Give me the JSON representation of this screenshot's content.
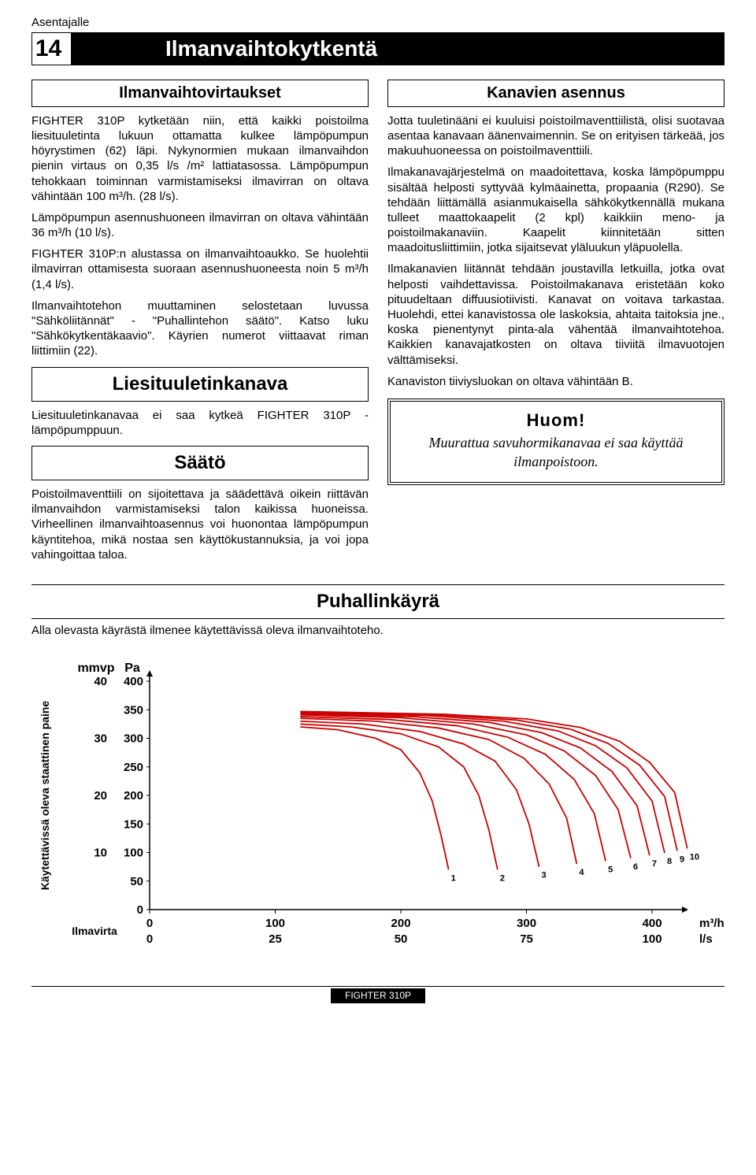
{
  "top_label": "Asentajalle",
  "page_num": "14",
  "page_title": "Ilmanvaihtokytkentä",
  "left": {
    "h1": "Ilmanvaihtovirtaukset",
    "p1": "FIGHTER 310P kytketään niin, että kaikki poistoilma liesituuletinta lukuun ottamatta kulkee lämpöpumpun höyrystimen (62) läpi. Nykynormien mukaan ilmanvaihdon pienin virtaus on 0,35 l/s /m² lattiatasossa. Lämpöpumpun tehokkaan toiminnan varmistamiseksi ilmavirran on oltava vähintään 100 m³/h. (28 l/s).",
    "p2": "Lämpöpumpun asennushuoneen ilmavirran on oltava vähintään 36 m³/h (10 l/s).",
    "p3": "FIGHTER 310P:n alustassa on ilmanvaihtoaukko. Se huolehtii ilmavirran ottamisesta suoraan asennushuoneesta noin 5 m³/h (1,4 l/s).",
    "p4": "Ilmanvaihtotehon muuttaminen selostetaan luvussa \"Sähköliitännät\" - \"Puhallintehon säätö\". Katso luku \"Sähkökytkentäkaavio\". Käyrien numerot viittaavat riman liittimiin (22).",
    "h2": "Liesituuletinkanava",
    "p5": "Liesituuletinkanavaa ei saa kytkeä FIGHTER 310P -lämpöpumppuun.",
    "h3": "Säätö",
    "p6": "Poistoilmaventtiili on sijoitettava ja säädettävä oikein riittävän ilmanvaihdon varmistamiseksi talon kaikissa huoneissa. Virheellinen ilmanvaihtoasennus voi huonontaa lämpöpumpun käyntitehoa, mikä nostaa sen käyttökustannuksia, ja voi jopa vahingoittaa taloa."
  },
  "right": {
    "h1": "Kanavien asennus",
    "p1": "Jotta tuuletinääni ei kuuluisi poistoilmaventtiilistä, olisi suotavaa asentaa kanavaan äänenvaimennin. Se on erityisen tärkeää, jos makuuhuoneessa on poistoilmaventtiili.",
    "p2": "Ilmakanavajärjestelmä on maadoitettava, koska lämpöpumppu sisältää helposti syttyvää kylmäainetta, propaania (R290). Se tehdään liittämällä asianmukaisella sähkökytkennällä mukana tulleet maattokaapelit (2 kpl) kaikkiin meno- ja poistoilmakanaviin. Kaapelit kiinnitetään sitten maadoitusliittimiin, jotka sijaitsevat yläluukun yläpuolella.",
    "p3": "Ilmakanavien liitännät tehdään joustavilla letkuilla, jotka ovat helposti vaihdettavissa. Poistoilmakanava eristetään koko pituudeltaan diffuusiotiivisti. Kanavat on voitava tarkastaa. Huolehdi, ettei kanavistossa ole laskoksia, ahtaita taitoksia jne., koska pienentynyt pinta-ala vähentää ilmanvaihtotehoa. Kaikkien kanavajatkosten on oltava tiiviitä ilmavuotojen välttämiseksi.",
    "p4": "Kanaviston tiiviysluokan on oltava vähintään B.",
    "huom_title": "Huom!",
    "huom_text": "Muurattua savuhormikanavaa ei saa käyttää ilmanpoistoon."
  },
  "fan_section": {
    "title": "Puhallinkäyrä",
    "caption": "Alla olevasta käyrästä ilmenee käytettävissä oleva ilmanvaihtoteho."
  },
  "chart": {
    "y_label": "Käytettävissä oleva staattinen paine",
    "y_unit_left_title": "mmvp",
    "y_unit_right_title": "Pa",
    "x_label": "Ilmavirta",
    "x_unit_top": "m³/h",
    "x_unit_bot": "l/s",
    "y_ticks_mmvp": [
      "40",
      "30",
      "20",
      "10"
    ],
    "y_ticks_pa": [
      "400",
      "350",
      "300",
      "250",
      "200",
      "150",
      "100",
      "50",
      "0"
    ],
    "x_ticks_top": [
      "0",
      "100",
      "200",
      "300",
      "400"
    ],
    "x_ticks_bot": [
      "0",
      "25",
      "50",
      "75",
      "100"
    ],
    "plot_bg": "#ffffff",
    "axis_color": "#000000",
    "curve_color": "#cc0000",
    "curve_width": 1.8,
    "x_range": [
      0,
      420
    ],
    "y_range": [
      0,
      400
    ],
    "curves": [
      {
        "label": "1",
        "pts": [
          [
            120,
            320
          ],
          [
            150,
            315
          ],
          [
            180,
            300
          ],
          [
            200,
            280
          ],
          [
            215,
            240
          ],
          [
            225,
            190
          ],
          [
            232,
            130
          ],
          [
            238,
            70
          ]
        ]
      },
      {
        "label": "2",
        "pts": [
          [
            120,
            325
          ],
          [
            160,
            320
          ],
          [
            200,
            308
          ],
          [
            230,
            285
          ],
          [
            250,
            250
          ],
          [
            262,
            200
          ],
          [
            270,
            140
          ],
          [
            277,
            70
          ]
        ]
      },
      {
        "label": "3",
        "pts": [
          [
            120,
            330
          ],
          [
            170,
            325
          ],
          [
            215,
            312
          ],
          [
            250,
            290
          ],
          [
            275,
            260
          ],
          [
            292,
            210
          ],
          [
            302,
            150
          ],
          [
            310,
            75
          ]
        ]
      },
      {
        "label": "4",
        "pts": [
          [
            120,
            335
          ],
          [
            180,
            330
          ],
          [
            230,
            318
          ],
          [
            270,
            298
          ],
          [
            298,
            265
          ],
          [
            318,
            220
          ],
          [
            332,
            160
          ],
          [
            340,
            80
          ]
        ]
      },
      {
        "label": "5",
        "pts": [
          [
            120,
            338
          ],
          [
            190,
            333
          ],
          [
            245,
            322
          ],
          [
            285,
            302
          ],
          [
            315,
            272
          ],
          [
            338,
            228
          ],
          [
            354,
            168
          ],
          [
            363,
            85
          ]
        ]
      },
      {
        "label": "6",
        "pts": [
          [
            120,
            341
          ],
          [
            200,
            336
          ],
          [
            258,
            325
          ],
          [
            300,
            306
          ],
          [
            330,
            278
          ],
          [
            355,
            235
          ],
          [
            373,
            175
          ],
          [
            383,
            90
          ]
        ]
      },
      {
        "label": "7",
        "pts": [
          [
            120,
            343
          ],
          [
            210,
            338
          ],
          [
            270,
            328
          ],
          [
            312,
            310
          ],
          [
            343,
            283
          ],
          [
            368,
            242
          ],
          [
            388,
            182
          ],
          [
            398,
            95
          ]
        ]
      },
      {
        "label": "8",
        "pts": [
          [
            120,
            345
          ],
          [
            220,
            340
          ],
          [
            282,
            330
          ],
          [
            325,
            313
          ],
          [
            355,
            287
          ],
          [
            380,
            248
          ],
          [
            400,
            190
          ],
          [
            410,
            99
          ]
        ]
      },
      {
        "label": "9",
        "pts": [
          [
            120,
            346
          ],
          [
            228,
            341
          ],
          [
            292,
            332
          ],
          [
            335,
            316
          ],
          [
            365,
            291
          ],
          [
            390,
            253
          ],
          [
            410,
            198
          ],
          [
            420,
            103
          ]
        ]
      },
      {
        "label": "10",
        "pts": [
          [
            120,
            347
          ],
          [
            235,
            342
          ],
          [
            300,
            334
          ],
          [
            343,
            319
          ],
          [
            374,
            295
          ],
          [
            398,
            258
          ],
          [
            418,
            205
          ],
          [
            428,
            107
          ]
        ]
      }
    ]
  },
  "footer": "FIGHTER 310P"
}
